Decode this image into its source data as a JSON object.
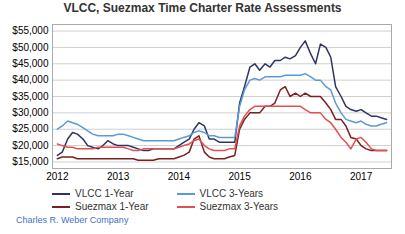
{
  "chart_data": {
    "type": "line",
    "title": "VLCC, Suezmax Time Charter Rate Assessments",
    "x": [
      2012.0,
      2012.08,
      2012.17,
      2012.25,
      2012.33,
      2012.42,
      2012.5,
      2012.58,
      2012.67,
      2012.75,
      2012.83,
      2012.92,
      2013.0,
      2013.08,
      2013.17,
      2013.25,
      2013.33,
      2013.42,
      2013.5,
      2013.58,
      2013.67,
      2013.75,
      2013.83,
      2013.92,
      2014.0,
      2014.08,
      2014.17,
      2014.25,
      2014.33,
      2014.42,
      2014.5,
      2014.58,
      2014.67,
      2014.75,
      2014.83,
      2014.92,
      2015.0,
      2015.08,
      2015.17,
      2015.25,
      2015.33,
      2015.42,
      2015.5,
      2015.58,
      2015.67,
      2015.75,
      2015.83,
      2015.92,
      2016.0,
      2016.08,
      2016.17,
      2016.25,
      2016.33,
      2016.42,
      2016.5,
      2016.58,
      2016.67,
      2016.75,
      2016.83,
      2016.92,
      2017.0,
      2017.08,
      2017.17,
      2017.25,
      2017.33,
      2017.42
    ],
    "series": [
      {
        "name": "VLCC 1-Year",
        "color": "#2e3563",
        "values": [
          17000,
          18000,
          22000,
          24000,
          23500,
          22000,
          20000,
          19500,
          19000,
          20000,
          21500,
          20500,
          20000,
          20000,
          20000,
          19500,
          19000,
          18500,
          18500,
          19000,
          19000,
          19000,
          19000,
          19000,
          20000,
          21000,
          22000,
          25000,
          27000,
          26000,
          22000,
          22000,
          21000,
          21000,
          21000,
          21000,
          33000,
          38000,
          44000,
          45000,
          43000,
          45000,
          44000,
          46000,
          46000,
          47000,
          46500,
          47500,
          50000,
          52000,
          48000,
          45000,
          51000,
          50000,
          47000,
          38000,
          35000,
          32000,
          31000,
          30500,
          31000,
          30000,
          29000,
          29000,
          28500,
          28000
        ]
      },
      {
        "name": "VLCC 3-Years",
        "color": "#5b9bd5",
        "values": [
          25000,
          26000,
          27500,
          27000,
          26500,
          25500,
          24500,
          23500,
          23000,
          23000,
          23000,
          23000,
          23500,
          23500,
          23000,
          22500,
          22000,
          21500,
          21500,
          21500,
          21500,
          21500,
          21500,
          21500,
          22000,
          22500,
          23000,
          24000,
          24500,
          24000,
          23000,
          23000,
          22500,
          22500,
          22500,
          22500,
          32000,
          37000,
          40000,
          40500,
          40000,
          41000,
          41000,
          41000,
          41000,
          41500,
          41500,
          41500,
          41500,
          42000,
          41000,
          40000,
          40000,
          38000,
          37000,
          33000,
          30000,
          28000,
          27500,
          27000,
          27500,
          26500,
          26000,
          26000,
          26500,
          27000
        ]
      },
      {
        "name": "Suezmax 1-Year",
        "color": "#7b1f1f",
        "values": [
          16000,
          16500,
          16500,
          16500,
          16000,
          16000,
          16000,
          16000,
          16000,
          16000,
          16000,
          16000,
          16000,
          16000,
          16000,
          16000,
          15500,
          15500,
          15500,
          15500,
          16000,
          16000,
          16000,
          16000,
          16500,
          17000,
          18000,
          22000,
          23000,
          18000,
          16500,
          16000,
          16000,
          16000,
          16500,
          17000,
          25000,
          28000,
          30000,
          30000,
          30000,
          32000,
          32000,
          33000,
          37000,
          38000,
          35000,
          36000,
          35000,
          36000,
          35000,
          35000,
          35000,
          33000,
          31000,
          28000,
          28000,
          26000,
          22500,
          22000,
          20000,
          19000,
          18500,
          18500,
          18500,
          18500
        ]
      },
      {
        "name": "Suezmax 3-Years",
        "color": "#e05050",
        "values": [
          20500,
          20000,
          19500,
          19500,
          19000,
          19000,
          19000,
          19000,
          19500,
          19500,
          19500,
          19500,
          19500,
          19500,
          19000,
          18500,
          18500,
          19000,
          19000,
          19000,
          19000,
          19000,
          19000,
          19000,
          19500,
          20000,
          20500,
          21500,
          22000,
          20000,
          19000,
          18500,
          18500,
          18500,
          19000,
          19000,
          26000,
          29000,
          31000,
          32000,
          32000,
          32000,
          32000,
          32000,
          32000,
          32000,
          32000,
          32000,
          32000,
          31000,
          30000,
          30000,
          30000,
          28000,
          27000,
          25000,
          22500,
          21000,
          19000,
          22000,
          22500,
          21000,
          19000,
          18500,
          18500,
          18500
        ]
      }
    ],
    "xlim": [
      2011.92,
      2017.5
    ],
    "xticks": [
      2012,
      2013,
      2014,
      2015,
      2016,
      2017
    ],
    "ylim": [
      13000,
      57000
    ],
    "yticks": [
      {
        "value": 15000,
        "label": "$15,000"
      },
      {
        "value": 20000,
        "label": "$20,000"
      },
      {
        "value": 25000,
        "label": "$25,000"
      },
      {
        "value": 30000,
        "label": "$30,000"
      },
      {
        "value": 35000,
        "label": "$35,000"
      },
      {
        "value": 40000,
        "label": "$40,000"
      },
      {
        "value": 45000,
        "label": "$45,000"
      },
      {
        "value": 50000,
        "label": "$50,000"
      },
      {
        "value": 55000,
        "label": "$55,000"
      }
    ],
    "grid": true,
    "legend": "bottom",
    "annotations": [
      {
        "text": "Charles R. Weber Company",
        "color": "#4472c4"
      }
    ]
  }
}
